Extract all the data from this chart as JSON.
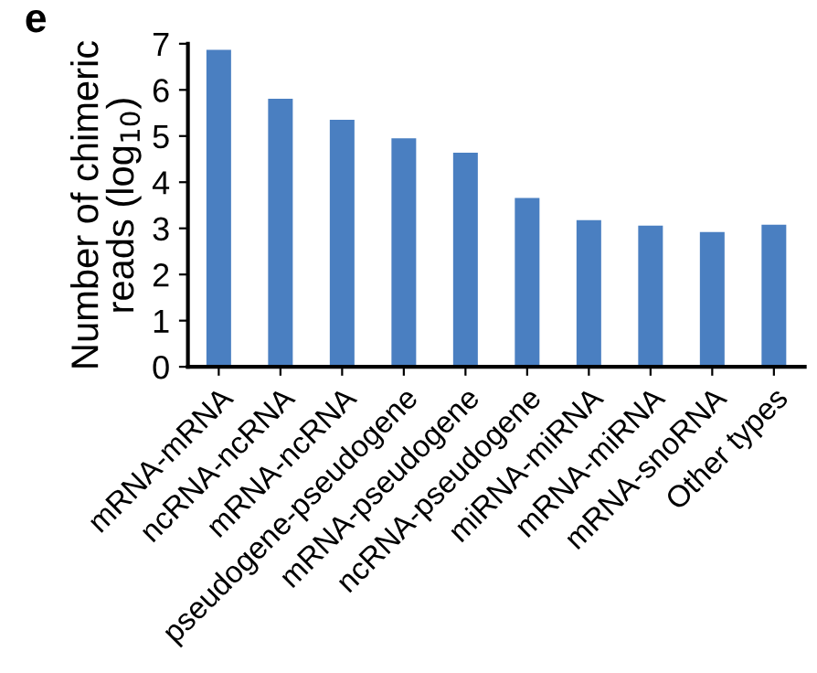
{
  "chart_data": {
    "type": "bar",
    "annotations": [
      "e"
    ],
    "ylabel": "Number of chimeric\nreads (log$_{10}$)",
    "categories": [
      "mRNA-mRNA",
      "ncRNA-ncRNA",
      "mRNA-ncRNA",
      "pseudogene-pseudogene",
      "mRNA-pseudogene",
      "ncRNA-pseudogene",
      "miRNA-miRNA",
      "mRNA-miRNA",
      "mRNA-snoRNA",
      "Other types"
    ],
    "values": [
      6.87,
      5.81,
      5.35,
      4.95,
      4.64,
      3.66,
      3.18,
      3.06,
      2.92,
      3.08
    ],
    "color": "#4a7fc1",
    "ylim": [
      0,
      7
    ],
    "yticks": [
      0,
      1,
      2,
      3,
      4,
      5,
      6,
      7
    ],
    "grid": false
  }
}
